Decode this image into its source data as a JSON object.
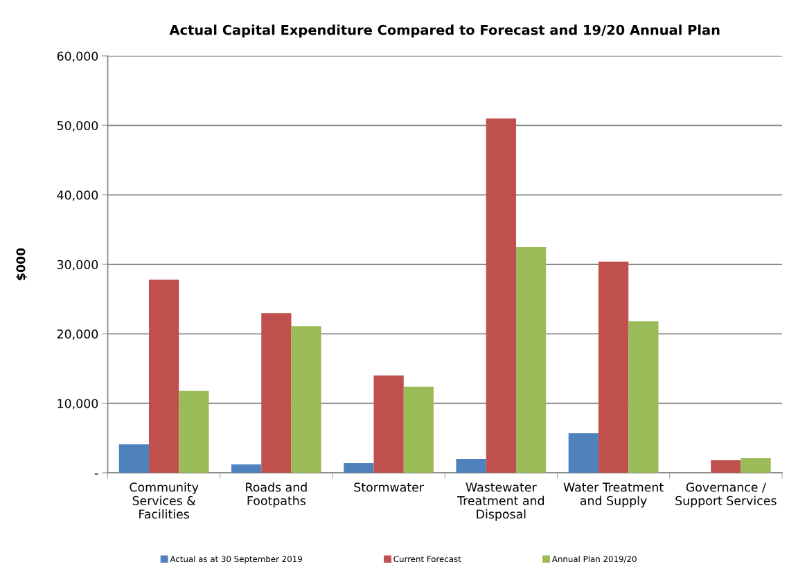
{
  "chart_data": {
    "type": "bar",
    "title": "Actual Capital Expenditure Compared to Forecast and 19/20 Annual Plan",
    "ylabel": "$000",
    "categories": [
      "Community\nServices &\nFacilities",
      "Roads and\nFootpaths",
      "Stormwater",
      "Wastewater\nTreatment and\nDisposal",
      "Water Treatment\nand Supply",
      "Governance /\nSupport Services"
    ],
    "series": [
      {
        "name": "Actual as at 30 September 2019",
        "color": "#4f81bd",
        "values": [
          4100,
          1200,
          1400,
          2000,
          5700,
          0
        ]
      },
      {
        "name": "Current Forecast",
        "color": "#c0504d",
        "values": [
          27800,
          23000,
          14000,
          51000,
          30400,
          1800
        ]
      },
      {
        "name": "Annual Plan 2019/20",
        "color": "#9bbb59",
        "values": [
          11800,
          21100,
          12400,
          32500,
          21800,
          2100
        ]
      }
    ],
    "ylim": [
      0,
      60000
    ],
    "yticks": [
      {
        "value": 0,
        "label": "-"
      },
      {
        "value": 10000,
        "label": "10,000"
      },
      {
        "value": 20000,
        "label": "20,000"
      },
      {
        "value": 30000,
        "label": "30,000"
      },
      {
        "value": 40000,
        "label": "40,000"
      },
      {
        "value": 50000,
        "label": "50,000"
      },
      {
        "value": 60000,
        "label": "60,000"
      }
    ],
    "grid": "y",
    "legend": "bottom"
  }
}
